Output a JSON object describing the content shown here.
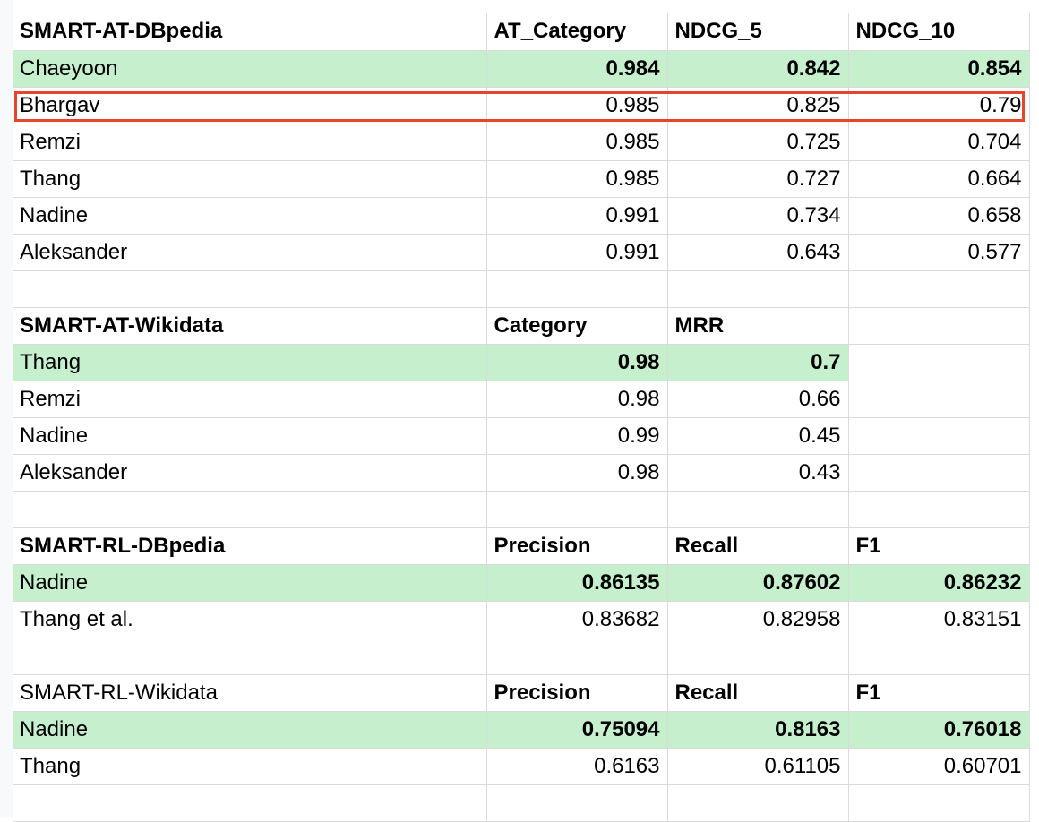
{
  "tables": [
    {
      "title": "SMART-AT-DBpedia",
      "headers": [
        "AT_Category",
        "NDCG_5",
        "NDCG_10"
      ],
      "rows": [
        {
          "name": "Chaeyoon",
          "values": [
            "0.984",
            "0.842",
            "0.854"
          ],
          "best": true
        },
        {
          "name": "Bhargav",
          "values": [
            "0.985",
            "0.825",
            "0.79"
          ],
          "selected": true
        },
        {
          "name": "Remzi",
          "values": [
            "0.985",
            "0.725",
            "0.704"
          ]
        },
        {
          "name": "Thang",
          "values": [
            "0.985",
            "0.727",
            "0.664"
          ]
        },
        {
          "name": "Nadine",
          "values": [
            "0.991",
            "0.734",
            "0.658"
          ]
        },
        {
          "name": "Aleksander",
          "values": [
            "0.991",
            "0.643",
            "0.577"
          ]
        }
      ]
    },
    {
      "title": "SMART-AT-Wikidata",
      "headers": [
        "Category",
        "MRR"
      ],
      "rows": [
        {
          "name": "Thang",
          "values": [
            "0.98",
            "0.7"
          ],
          "best": true
        },
        {
          "name": "Remzi",
          "values": [
            "0.98",
            "0.66"
          ]
        },
        {
          "name": "Nadine",
          "values": [
            "0.99",
            "0.45"
          ]
        },
        {
          "name": "Aleksander",
          "values": [
            "0.98",
            "0.43"
          ]
        }
      ]
    },
    {
      "title": "SMART-RL-DBpedia",
      "headers": [
        "Precision",
        "Recall",
        "F1"
      ],
      "rows": [
        {
          "name": "Nadine",
          "values": [
            "0.86135",
            "0.87602",
            "0.86232"
          ],
          "best": true
        },
        {
          "name": "Thang et al.",
          "values": [
            "0.83682",
            "0.82958",
            "0.83151"
          ]
        }
      ]
    },
    {
      "title": "SMART-RL-Wikidata",
      "title_bold": false,
      "headers": [
        "Precision",
        "Recall",
        "F1"
      ],
      "rows": [
        {
          "name": "Nadine",
          "values": [
            "0.75094",
            "0.8163",
            "0.76018"
          ],
          "best": true
        },
        {
          "name": "Thang",
          "values": [
            "0.6163",
            "0.61105",
            "0.60701"
          ]
        }
      ]
    }
  ],
  "colors": {
    "best_row_fill": "#c6efce",
    "selection_border": "#e8432c",
    "gridline": "#dadada"
  }
}
